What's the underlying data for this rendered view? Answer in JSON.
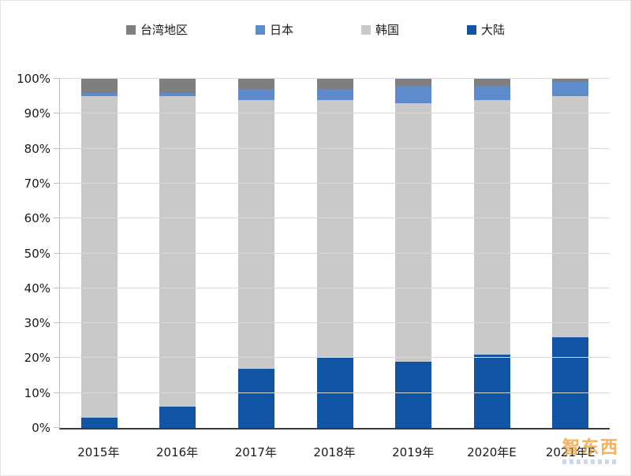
{
  "watermark": {
    "text": "智东西"
  },
  "chart_data": {
    "type": "bar",
    "stacked": true,
    "percent": true,
    "title": "",
    "xlabel": "",
    "ylabel": "",
    "categories": [
      "2015年",
      "2016年",
      "2017年",
      "2018年",
      "2019年",
      "2020年E",
      "2021年E"
    ],
    "series": [
      {
        "name": "大陆",
        "color": "#1254a4",
        "values": [
          3,
          6,
          17,
          20,
          19,
          21,
          26
        ]
      },
      {
        "name": "韩国",
        "color": "#c9c9c9",
        "values": [
          92,
          89,
          77,
          74,
          74,
          73,
          69
        ]
      },
      {
        "name": "日本",
        "color": "#5e8bcb",
        "values": [
          1,
          1,
          3,
          3,
          5,
          4,
          4
        ]
      },
      {
        "name": "台湾地区",
        "color": "#7f7f7f",
        "values": [
          4,
          4,
          3,
          3,
          2,
          2,
          1
        ]
      }
    ],
    "legend": [
      {
        "label": "台湾地区",
        "color": "#7f7f7f"
      },
      {
        "label": "日本",
        "color": "#5e8bcb"
      },
      {
        "label": "韩国",
        "color": "#c9c9c9"
      },
      {
        "label": "大陆",
        "color": "#1254a4"
      }
    ],
    "ylim": [
      0,
      100
    ],
    "ytick_step": 10,
    "ytick_suffix": "%",
    "grid": true,
    "legend_position": "top"
  }
}
